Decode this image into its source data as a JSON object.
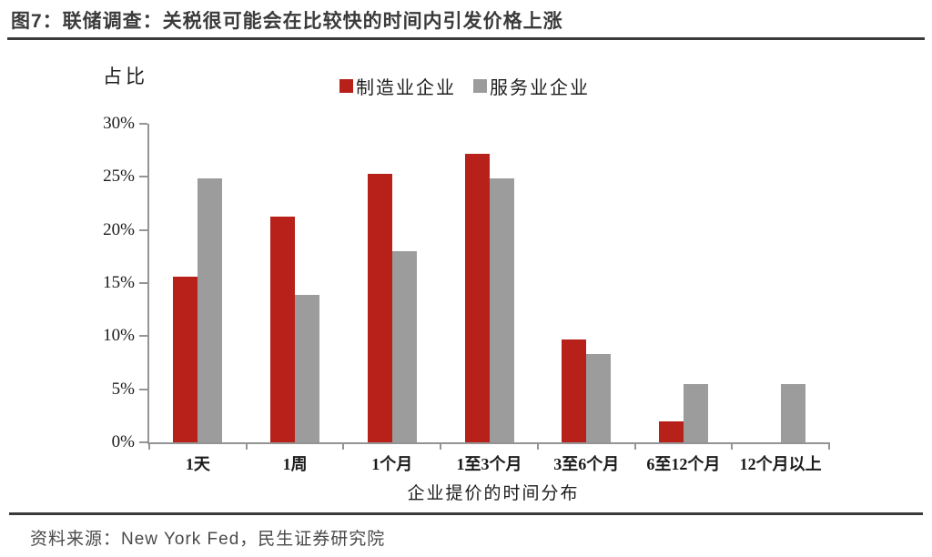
{
  "header": {
    "title": "图7：联储调查：关税很可能会在比较快的时间内引发价格上涨"
  },
  "chart_data": {
    "type": "bar",
    "title": "图7：联储调查：关税很可能会在比较快的时间内引发价格上涨",
    "ylabel": "占比",
    "xlabel": "企业提价的时间分布",
    "categories": [
      "1天",
      "1周",
      "1个月",
      "1至3个月",
      "3至6个月",
      "6至12个月",
      "12个月以上"
    ],
    "series": [
      {
        "name": "制造业企业",
        "color": "#b7211a",
        "values": [
          15.6,
          21.3,
          25.3,
          27.2,
          9.7,
          2.0,
          0
        ]
      },
      {
        "name": "服务业企业",
        "color": "#9c9c9c",
        "values": [
          24.9,
          13.9,
          18.0,
          24.9,
          8.3,
          5.5,
          5.5
        ]
      }
    ],
    "ylim": [
      0,
      30
    ],
    "yticks": [
      0,
      5,
      10,
      15,
      20,
      25,
      30
    ],
    "ytick_suffix": "%",
    "grid": false,
    "legend_position": "top"
  },
  "footer": {
    "source": "资料来源：New York Fed，民生证券研究院"
  }
}
